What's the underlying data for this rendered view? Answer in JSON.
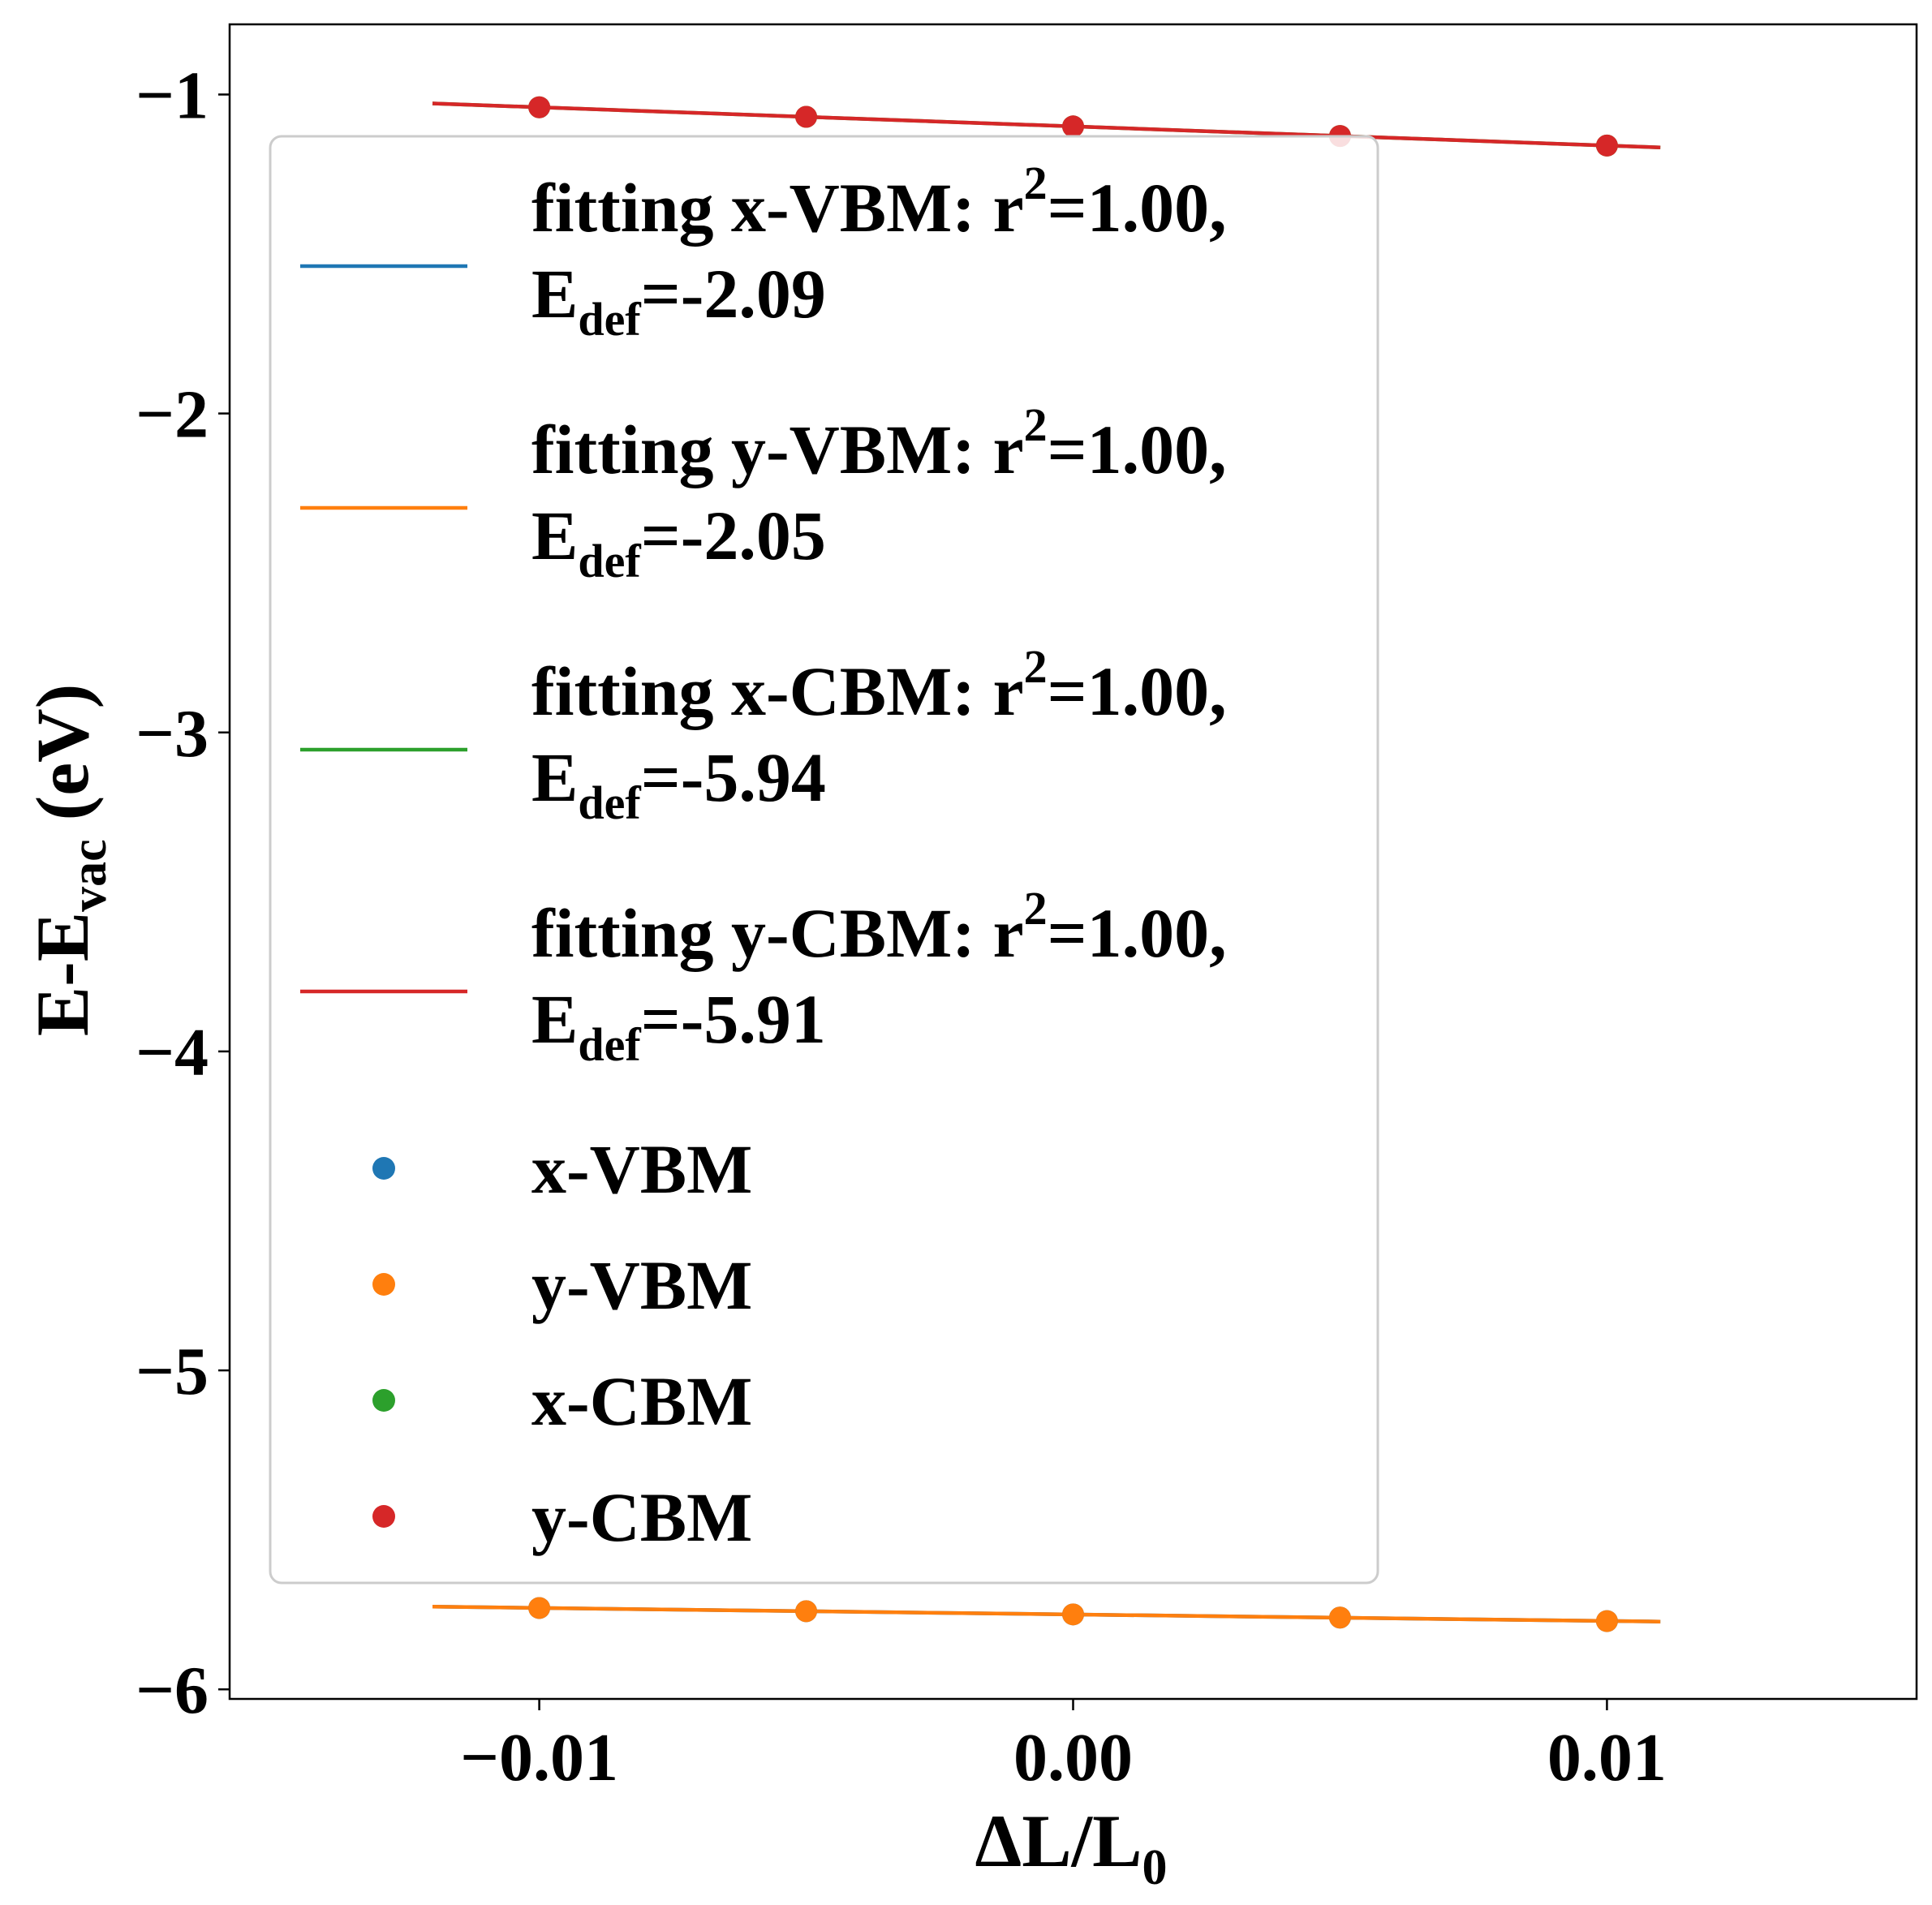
{
  "chart_data": {
    "type": "scatter",
    "xlabel": "ΔL/L₀",
    "xlabel_main": "ΔL/L",
    "xlabel_sub": "0",
    "ylabel": "E-E_vac (eV)",
    "ylabel_main": "E-E",
    "ylabel_sub": "vac",
    "ylabel_tail": " (eV)",
    "xlim": [
      -0.0158,
      0.0158
    ],
    "ylim": [
      -6.03,
      -0.78
    ],
    "x_ticks": [
      -0.01,
      0.0,
      0.01
    ],
    "x_tick_labels": [
      "−0.01",
      "0.00",
      "0.01"
    ],
    "y_ticks": [
      -1,
      -2,
      -3,
      -4,
      -5,
      -6
    ],
    "y_tick_labels": [
      "−1",
      "−2",
      "−3",
      "−4",
      "−5",
      "−6"
    ],
    "grid": false,
    "legend_position": "upper-left",
    "x": [
      -0.01,
      -0.005,
      0.0,
      0.005,
      0.01
    ],
    "fit_x_range": [
      -0.012,
      0.011
    ],
    "series": [
      {
        "name": "x-VBM",
        "color": "#1f77b4",
        "y": [
          -5.745,
          -5.755,
          -5.765,
          -5.775,
          -5.786
        ]
      },
      {
        "name": "y-VBM",
        "color": "#ff7f0e",
        "y": [
          -5.745,
          -5.755,
          -5.765,
          -5.775,
          -5.786
        ]
      },
      {
        "name": "x-CBM",
        "color": "#2ca02c",
        "y": [
          -1.04,
          -1.07,
          -1.1,
          -1.13,
          -1.16
        ]
      },
      {
        "name": "y-CBM",
        "color": "#d62728",
        "y": [
          -1.04,
          -1.07,
          -1.1,
          -1.13,
          -1.16
        ]
      }
    ],
    "fits": [
      {
        "name": "fitting x-VBM",
        "color": "#1f77b4",
        "line1": "fitting x-VBM: r",
        "sup": "2",
        "line1_tail": "=1.00,",
        "line2_main": "E",
        "line2_sub": "def",
        "line2_tail": "=-2.09",
        "slope": -2.09,
        "r2": 1.0
      },
      {
        "name": "fitting y-VBM",
        "color": "#ff7f0e",
        "line1": "fitting y-VBM: r",
        "sup": "2",
        "line1_tail": "=1.00,",
        "line2_main": "E",
        "line2_sub": "def",
        "line2_tail": "=-2.05",
        "slope": -2.05,
        "r2": 1.0
      },
      {
        "name": "fitting x-CBM",
        "color": "#2ca02c",
        "line1": "fitting x-CBM: r",
        "sup": "2",
        "line1_tail": "=1.00,",
        "line2_main": "E",
        "line2_sub": "def",
        "line2_tail": "=-5.94",
        "slope": -5.94,
        "r2": 1.0
      },
      {
        "name": "fitting y-CBM",
        "color": "#d62728",
        "line1": "fitting y-CBM: r",
        "sup": "2",
        "line1_tail": "=1.00,",
        "line2_main": "E",
        "line2_sub": "def",
        "line2_tail": "=-5.91",
        "slope": -5.91,
        "r2": 1.0
      }
    ]
  }
}
